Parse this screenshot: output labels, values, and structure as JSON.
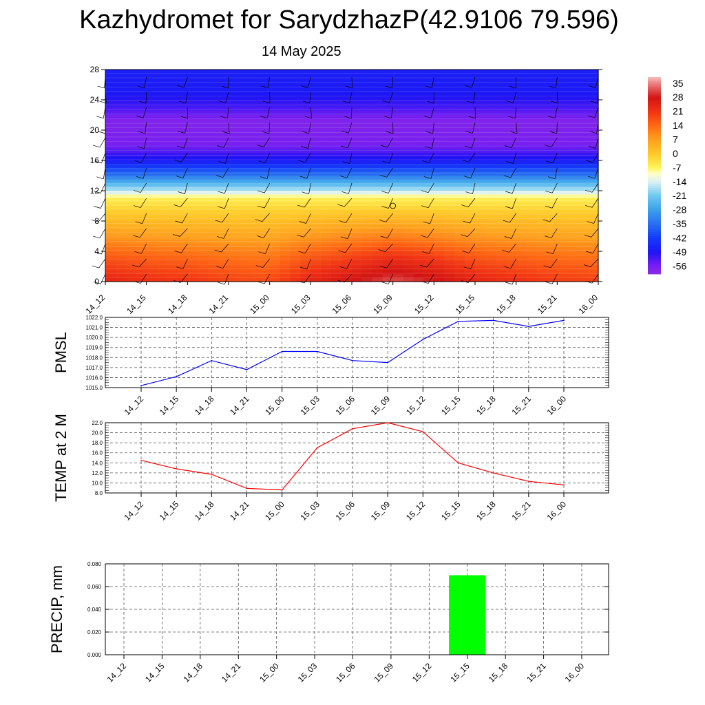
{
  "header": {
    "title": "Kazhydromet for SarydzhazP(42.9106 79.596)",
    "date": "14 May 2025"
  },
  "colors": {
    "pmsl_line": "#0000ff",
    "temp_line": "#ff0000",
    "precip_bar": "#00ff00",
    "grid": "#555555"
  },
  "chart_data": [
    {
      "type": "heatmap",
      "name": "cross-section",
      "x_ticks": [
        "14_12",
        "14_15",
        "14_18",
        "14_21",
        "15_00",
        "15_03",
        "15_06",
        "15_09",
        "15_12",
        "15_15",
        "15_18",
        "15_21",
        "16_00"
      ],
      "y_ticks": [
        0,
        4,
        8,
        12,
        16,
        20,
        24,
        28
      ],
      "ylim": [
        0,
        28
      ],
      "colorbar": {
        "labels": [
          35,
          28,
          21,
          14,
          7,
          0,
          -7,
          -14,
          -21,
          -28,
          -35,
          -42,
          -49,
          -56
        ],
        "range": [
          -60,
          38
        ]
      },
      "temperature_profile_by_height": [
        {
          "h": 0,
          "t": 24
        },
        {
          "h": 3,
          "t": 17
        },
        {
          "h": 6,
          "t": 8
        },
        {
          "h": 9,
          "t": 0
        },
        {
          "h": 11,
          "t": -6
        },
        {
          "h": 12,
          "t": -16
        },
        {
          "h": 14,
          "t": -34
        },
        {
          "h": 16,
          "t": -48
        },
        {
          "h": 18,
          "t": -56
        },
        {
          "h": 21,
          "t": -58
        },
        {
          "h": 23,
          "t": -52
        },
        {
          "h": 25,
          "t": -48
        },
        {
          "h": 28,
          "t": -47
        }
      ],
      "surface_warming_by_time": [
        0,
        -2,
        -3,
        -5,
        -6,
        0,
        4,
        8,
        5,
        0,
        -2,
        -4,
        -5
      ],
      "marker": {
        "x": "15_09",
        "h": 10
      },
      "grid": false
    },
    {
      "type": "line",
      "ylabel": "PMSL",
      "categories": [
        "14_12",
        "14_15",
        "14_18",
        "14_21",
        "15_00",
        "15_03",
        "15_06",
        "15_09",
        "15_12",
        "15_15",
        "15_18",
        "15_21",
        "16_00"
      ],
      "values": [
        1015.2,
        1016.1,
        1017.7,
        1016.8,
        1018.6,
        1018.6,
        1017.7,
        1017.5,
        1019.8,
        1021.6,
        1021.7,
        1021.1,
        1021.7
      ],
      "ylim": [
        1015.0,
        1022.0
      ],
      "y_ticks": [
        "1015.0",
        "1016.0",
        "1017.0",
        "1018.0",
        "1019.0",
        "1020.0",
        "1021.0",
        "1022.0"
      ],
      "grid": true
    },
    {
      "type": "line",
      "ylabel": "TEMP at 2 M",
      "categories": [
        "14_12",
        "14_15",
        "14_18",
        "14_21",
        "15_00",
        "15_03",
        "15_06",
        "15_09",
        "15_12",
        "15_15",
        "15_18",
        "15_21",
        "16_00"
      ],
      "values": [
        14.5,
        12.8,
        11.7,
        8.9,
        8.6,
        17.0,
        20.8,
        22.0,
        20.2,
        14.0,
        12.0,
        10.3,
        9.6
      ],
      "ylim": [
        8.0,
        22.0
      ],
      "y_ticks": [
        "8.0",
        "10.0",
        "12.0",
        "14.0",
        "16.0",
        "18.0",
        "20.0",
        "22.0"
      ],
      "grid": true
    },
    {
      "type": "bar",
      "ylabel": "PRECIP, mm",
      "categories": [
        "14_12",
        "14_15",
        "14_18",
        "14_21",
        "15_00",
        "15_03",
        "15_06",
        "15_09",
        "15_12",
        "15_15",
        "15_18",
        "15_21",
        "16_00"
      ],
      "values": [
        0,
        0,
        0,
        0,
        0,
        0,
        0,
        0,
        0,
        0.07,
        0,
        0,
        0
      ],
      "ylim": [
        0,
        0.08
      ],
      "y_ticks": [
        "0.000",
        "0.020",
        "0.040",
        "0.060",
        "0.080"
      ],
      "grid": true
    }
  ]
}
